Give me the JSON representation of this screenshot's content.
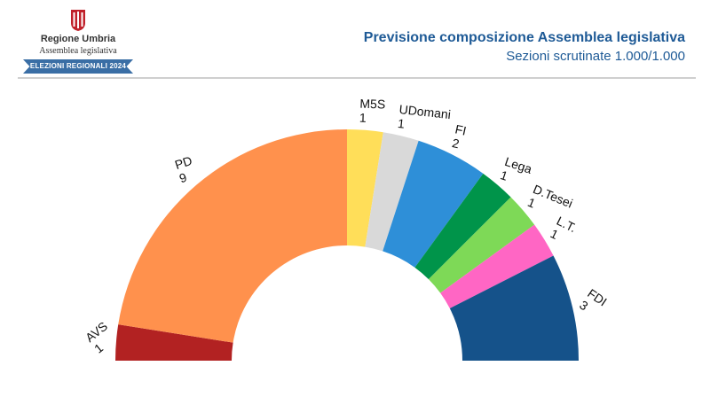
{
  "header": {
    "region_name": "Regione Umbria",
    "assembly_name": "Assemblea legislativa",
    "ribbon_text": "ELEZIONI REGIONALI 2024",
    "title": "Previsione composizione Assemblea legislativa",
    "subtitle": "Sezioni scrutinate 1.000/1.000"
  },
  "chart_data": {
    "type": "pie",
    "variant": "semicircle-donut",
    "total_seats": 20,
    "series": [
      {
        "name": "AVS",
        "value": 1,
        "color": "#b22222"
      },
      {
        "name": "PD",
        "value": 9,
        "color": "#ff914d"
      },
      {
        "name": "M5S",
        "value": 1,
        "color": "#ffde59"
      },
      {
        "name": "UDomani",
        "value": 1,
        "color": "#d9d9d9"
      },
      {
        "name": "FI",
        "value": 2,
        "color": "#2e8fd8"
      },
      {
        "name": "Lega",
        "value": 1,
        "color": "#00944a"
      },
      {
        "name": "D.Tesei",
        "value": 1,
        "color": "#7ed957"
      },
      {
        "name": "L.T.",
        "value": 1,
        "color": "#ff66c4"
      },
      {
        "name": "FDI",
        "value": 3,
        "color": "#15528a"
      }
    ]
  }
}
